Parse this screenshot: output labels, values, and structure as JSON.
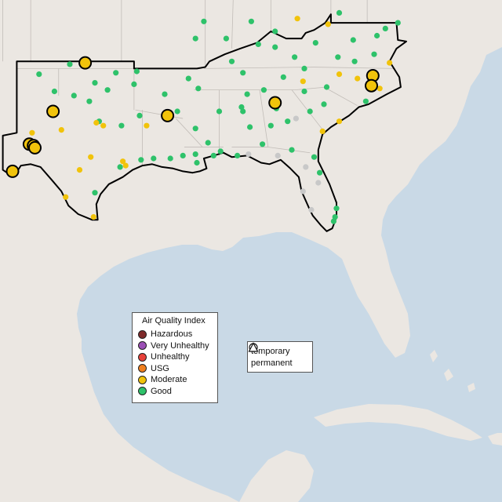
{
  "legend": {
    "title": "Air Quality Index",
    "categories": [
      {
        "label": "Hazardous",
        "color": "#7e2a2a"
      },
      {
        "label": "Very Unhealthy",
        "color": "#9b4fb5"
      },
      {
        "label": "Unhealthy",
        "color": "#e8413a"
      },
      {
        "label": "USG",
        "color": "#f07f1e"
      },
      {
        "label": "Moderate",
        "color": "#f1c30b"
      },
      {
        "label": "Good",
        "color": "#2ec26a"
      }
    ],
    "monitor_types": [
      {
        "label": "temporary",
        "shape": "circle"
      },
      {
        "label": "permanent",
        "shape": "triangle"
      }
    ]
  },
  "colors": {
    "water": "#c9d9e6",
    "land": "#ebe7e2",
    "no_data": "#c8c8c8",
    "region_outline": "#000000"
  },
  "temporary_monitors": [
    {
      "lon": -98.1,
      "lat": 36.9,
      "aqi": "Moderate"
    },
    {
      "lon": -100.4,
      "lat": 33.5,
      "aqi": "Moderate"
    },
    {
      "lon": -92.2,
      "lat": 33.2,
      "aqi": "Moderate"
    },
    {
      "lon": -102.1,
      "lat": 31.2,
      "aqi": "Moderate"
    },
    {
      "lon": -101.8,
      "lat": 31.1,
      "aqi": "Moderate"
    },
    {
      "lon": -101.7,
      "lat": 30.95,
      "aqi": "Moderate"
    },
    {
      "lon": -103.3,
      "lat": 29.3,
      "aqi": "Moderate"
    },
    {
      "lon": -84.5,
      "lat": 34.1,
      "aqi": "Moderate"
    },
    {
      "lon": -77.5,
      "lat": 36.0,
      "aqi": "Moderate"
    },
    {
      "lon": -77.6,
      "lat": 35.3,
      "aqi": "Moderate"
    }
  ],
  "permanent_monitors": [
    {
      "lon": -101.4,
      "lat": 36.1,
      "aqi": "Good"
    },
    {
      "lon": -99.2,
      "lat": 36.8,
      "aqi": "Good"
    },
    {
      "lon": -97.4,
      "lat": 35.5,
      "aqi": "Good"
    },
    {
      "lon": -95.9,
      "lat": 36.2,
      "aqi": "Good"
    },
    {
      "lon": -96.5,
      "lat": 35.0,
      "aqi": "Good"
    },
    {
      "lon": -94.6,
      "lat": 35.4,
      "aqi": "Good"
    },
    {
      "lon": -98.9,
      "lat": 34.6,
      "aqi": "Good"
    },
    {
      "lon": -100.3,
      "lat": 34.9,
      "aqi": "Good"
    },
    {
      "lon": -97.8,
      "lat": 34.2,
      "aqi": "Good"
    },
    {
      "lon": -94.2,
      "lat": 33.2,
      "aqi": "Good"
    },
    {
      "lon": -95.5,
      "lat": 32.5,
      "aqi": "Good"
    },
    {
      "lon": -97.1,
      "lat": 32.8,
      "aqi": "Good"
    },
    {
      "lon": -96.8,
      "lat": 32.5,
      "aqi": "Moderate"
    },
    {
      "lon": -97.3,
      "lat": 32.7,
      "aqi": "Moderate"
    },
    {
      "lon": -99.8,
      "lat": 32.2,
      "aqi": "Moderate"
    },
    {
      "lon": -101.9,
      "lat": 32.0,
      "aqi": "Moderate"
    },
    {
      "lon": -95.4,
      "lat": 30.0,
      "aqi": "Moderate"
    },
    {
      "lon": -95.2,
      "lat": 29.7,
      "aqi": "Moderate"
    },
    {
      "lon": -94.1,
      "lat": 30.1,
      "aqi": "Good"
    },
    {
      "lon": -95.6,
      "lat": 29.6,
      "aqi": "Good"
    },
    {
      "lon": -97.7,
      "lat": 30.3,
      "aqi": "Moderate"
    },
    {
      "lon": -98.5,
      "lat": 29.4,
      "aqi": "Moderate"
    },
    {
      "lon": -97.4,
      "lat": 27.8,
      "aqi": "Good"
    },
    {
      "lon": -97.5,
      "lat": 26.1,
      "aqi": "Moderate"
    },
    {
      "lon": -99.5,
      "lat": 27.5,
      "aqi": "Moderate"
    },
    {
      "lon": -92.0,
      "lat": 30.2,
      "aqi": "Good"
    },
    {
      "lon": -91.1,
      "lat": 30.4,
      "aqi": "Good"
    },
    {
      "lon": -90.1,
      "lat": 29.9,
      "aqi": "Good"
    },
    {
      "lon": -90.2,
      "lat": 30.5,
      "aqi": "Good"
    },
    {
      "lon": -93.2,
      "lat": 30.2,
      "aqi": "Good"
    },
    {
      "lon": -93.7,
      "lat": 32.5,
      "aqi": "Moderate"
    },
    {
      "lon": -92.4,
      "lat": 34.7,
      "aqi": "Good"
    },
    {
      "lon": -94.4,
      "lat": 36.3,
      "aqi": "Good"
    },
    {
      "lon": -90.7,
      "lat": 35.8,
      "aqi": "Good"
    },
    {
      "lon": -91.5,
      "lat": 33.5,
      "aqi": "Good"
    },
    {
      "lon": -90.2,
      "lat": 32.3,
      "aqi": "Good"
    },
    {
      "lon": -89.3,
      "lat": 31.3,
      "aqi": "Good"
    },
    {
      "lon": -88.4,
      "lat": 30.7,
      "aqi": "Good"
    },
    {
      "lon": -88.9,
      "lat": 30.4,
      "aqi": "Good"
    },
    {
      "lon": -88.5,
      "lat": 33.5,
      "aqi": "Good"
    },
    {
      "lon": -86.8,
      "lat": 33.5,
      "aqi": "Good"
    },
    {
      "lon": -86.5,
      "lat": 34.7,
      "aqi": "Good"
    },
    {
      "lon": -86.3,
      "lat": 32.4,
      "aqi": "Good"
    },
    {
      "lon": -85.4,
      "lat": 31.2,
      "aqi": "Good"
    },
    {
      "lon": -87.2,
      "lat": 30.4,
      "aqi": "Good"
    },
    {
      "lon": -86.9,
      "lat": 33.8,
      "aqi": "Good"
    },
    {
      "lon": -90.0,
      "lat": 35.1,
      "aqi": "Good"
    },
    {
      "lon": -86.8,
      "lat": 36.2,
      "aqi": "Good"
    },
    {
      "lon": -85.3,
      "lat": 35.0,
      "aqi": "Good"
    },
    {
      "lon": -83.9,
      "lat": 35.9,
      "aqi": "Good"
    },
    {
      "lon": -82.4,
      "lat": 36.5,
      "aqi": "Good"
    },
    {
      "lon": -84.5,
      "lat": 38.0,
      "aqi": "Good"
    },
    {
      "lon": -85.7,
      "lat": 38.2,
      "aqi": "Good"
    },
    {
      "lon": -87.6,
      "lat": 37.0,
      "aqi": "Good"
    },
    {
      "lon": -83.1,
      "lat": 37.3,
      "aqi": "Good"
    },
    {
      "lon": -81.6,
      "lat": 38.3,
      "aqi": "Good"
    },
    {
      "lon": -80.0,
      "lat": 37.3,
      "aqi": "Good"
    },
    {
      "lon": -77.4,
      "lat": 37.5,
      "aqi": "Good"
    },
    {
      "lon": -76.3,
      "lat": 36.9,
      "aqi": "Moderate"
    },
    {
      "lon": -78.8,
      "lat": 37.0,
      "aqi": "Good"
    },
    {
      "lon": -79.9,
      "lat": 36.1,
      "aqi": "Moderate"
    },
    {
      "lon": -80.8,
      "lat": 35.2,
      "aqi": "Good"
    },
    {
      "lon": -82.5,
      "lat": 35.6,
      "aqi": "Moderate"
    },
    {
      "lon": -81.0,
      "lat": 34.0,
      "aqi": "Good"
    },
    {
      "lon": -82.4,
      "lat": 34.9,
      "aqi": "Good"
    },
    {
      "lon": -79.9,
      "lat": 32.8,
      "aqi": "Moderate"
    },
    {
      "lon": -78.0,
      "lat": 34.2,
      "aqi": "Good"
    },
    {
      "lon": -78.6,
      "lat": 35.8,
      "aqi": "Moderate"
    },
    {
      "lon": -77.0,
      "lat": 35.1,
      "aqi": "Moderate"
    },
    {
      "lon": -84.4,
      "lat": 33.7,
      "aqi": "Good"
    },
    {
      "lon": -83.6,
      "lat": 32.8,
      "aqi": "Good"
    },
    {
      "lon": -81.1,
      "lat": 32.1,
      "aqi": "Moderate"
    },
    {
      "lon": -82.0,
      "lat": 33.5,
      "aqi": "Good"
    },
    {
      "lon": -84.8,
      "lat": 32.5,
      "aqi": "Good"
    },
    {
      "lon": -83.3,
      "lat": 30.8,
      "aqi": "Good"
    },
    {
      "lon": -81.7,
      "lat": 30.3,
      "aqi": "Good"
    },
    {
      "lon": -81.3,
      "lat": 29.2,
      "aqi": "Good"
    },
    {
      "lon": -82.3,
      "lat": 29.6,
      "aqi": "no data"
    },
    {
      "lon": -82.5,
      "lat": 27.9,
      "aqi": "no data"
    },
    {
      "lon": -81.4,
      "lat": 28.5,
      "aqi": "no data"
    },
    {
      "lon": -81.9,
      "lat": 26.6,
      "aqi": "no data"
    },
    {
      "lon": -80.2,
      "lat": 26.1,
      "aqi": "Good"
    },
    {
      "lon": -80.3,
      "lat": 25.8,
      "aqi": "Good"
    },
    {
      "lon": -80.1,
      "lat": 26.7,
      "aqi": "Good"
    },
    {
      "lon": -84.3,
      "lat": 30.4,
      "aqi": "no data"
    },
    {
      "lon": -86.4,
      "lat": 30.5,
      "aqi": "no data"
    },
    {
      "lon": -83.0,
      "lat": 33.0,
      "aqi": "no data"
    },
    {
      "lon": -78.9,
      "lat": 38.5,
      "aqi": "Good"
    },
    {
      "lon": -77.2,
      "lat": 38.8,
      "aqi": "Good"
    },
    {
      "lon": -76.6,
      "lat": 39.3,
      "aqi": "Good"
    },
    {
      "lon": -75.7,
      "lat": 39.7,
      "aqi": "Good"
    },
    {
      "lon": -79.9,
      "lat": 40.4,
      "aqi": "Good"
    },
    {
      "lon": -84.5,
      "lat": 39.1,
      "aqi": "Good"
    },
    {
      "lon": -86.2,
      "lat": 39.8,
      "aqi": "Good"
    },
    {
      "lon": -88.0,
      "lat": 38.6,
      "aqi": "Good"
    },
    {
      "lon": -90.2,
      "lat": 38.6,
      "aqi": "Good"
    },
    {
      "lon": -89.6,
      "lat": 39.8,
      "aqi": "Good"
    },
    {
      "lon": -82.9,
      "lat": 40.0,
      "aqi": "Moderate"
    },
    {
      "lon": -80.7,
      "lat": 39.6,
      "aqi": "Moderate"
    }
  ]
}
